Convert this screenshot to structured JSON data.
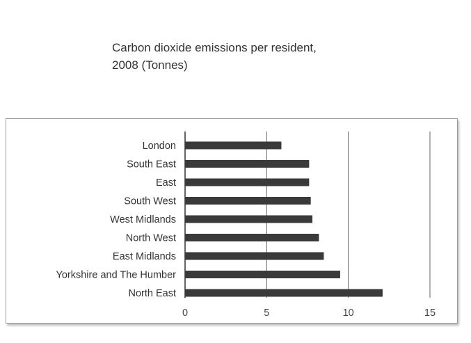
{
  "chart_data": {
    "type": "bar",
    "orientation": "horizontal",
    "title_line1": "Carbon dioxide emissions per resident,",
    "title_line2": "2008 (Tonnes)",
    "categories": [
      "London",
      "South East",
      "East",
      "South West",
      "West Midlands",
      "North West",
      "East Midlands",
      "Yorkshire and The Humber",
      "North East"
    ],
    "values": [
      5.9,
      7.6,
      7.6,
      7.7,
      7.8,
      8.2,
      8.5,
      9.5,
      12.1
    ],
    "xlim": [
      0,
      15
    ],
    "ticks": [
      "0",
      "5",
      "10",
      "15"
    ],
    "grid": true,
    "colors": {
      "bar": "#3a3a3a",
      "grid": "#555555"
    }
  }
}
